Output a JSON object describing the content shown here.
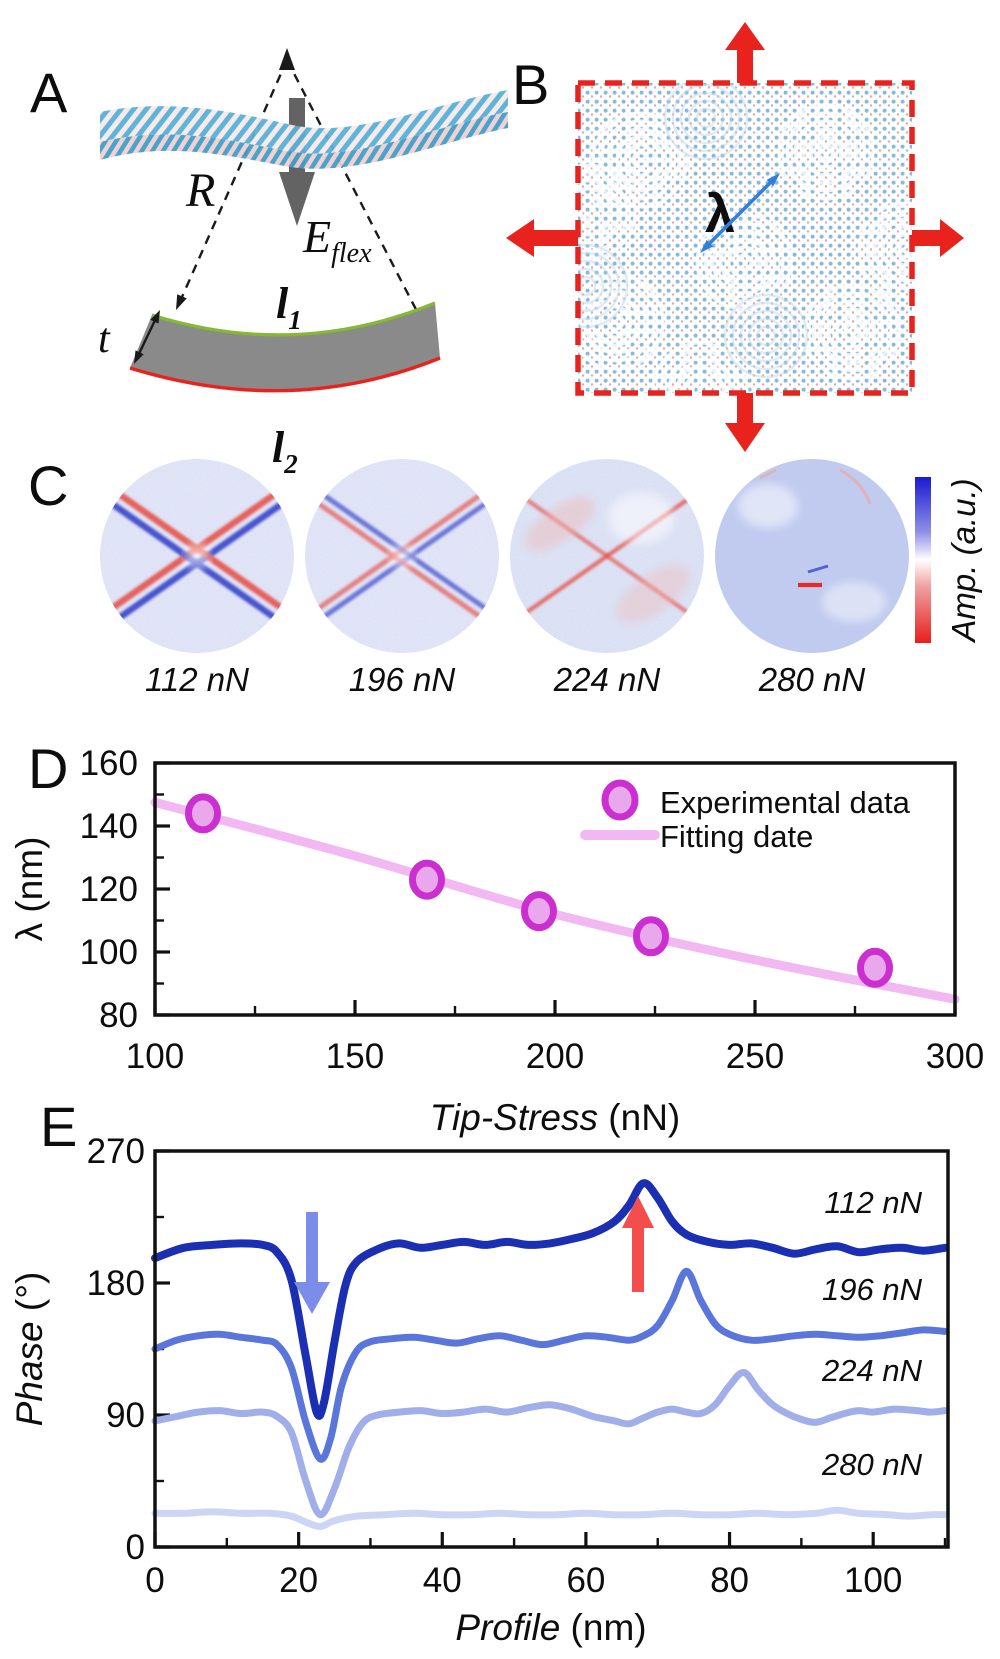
{
  "figure": {
    "panel_labels": {
      "a": "A",
      "b": "B",
      "c": "C",
      "d": "D",
      "e": "E"
    }
  },
  "panel_a": {
    "radius_label": "R",
    "energy_label": "E",
    "energy_sub": "flex",
    "thickness_label": "t",
    "arc_top_label": "l",
    "arc_top_sub": "1",
    "arc_bottom_label": "l",
    "arc_bottom_sub": "2"
  },
  "panel_b": {
    "wavelength_label": "λ"
  },
  "panel_c": {
    "force_labels": [
      "112 nN",
      "196 nN",
      "224 nN",
      "280 nN"
    ],
    "colorbar_label": "Amp. (a.u.)"
  },
  "panel_d": {
    "ylabel": "λ (nm)",
    "xlabel_main": "Tip-Stress",
    "xlabel_unit": " (nN)",
    "legend": [
      {
        "label": "Experimental data"
      },
      {
        "label": "Fitting date"
      }
    ],
    "x_ticks": [
      {
        "v": 100,
        "label": "100"
      },
      {
        "v": 150,
        "label": "150"
      },
      {
        "v": 200,
        "label": "200"
      },
      {
        "v": 250,
        "label": "250"
      },
      {
        "v": 300,
        "label": "300"
      }
    ],
    "y_ticks": [
      {
        "v": 80,
        "label": "80"
      },
      {
        "v": 100,
        "label": "100"
      },
      {
        "v": 120,
        "label": "120"
      },
      {
        "v": 140,
        "label": "140"
      },
      {
        "v": 160,
        "label": "160"
      }
    ],
    "x_minor": [
      125,
      175,
      225,
      275
    ],
    "y_minor": [
      90,
      110,
      130,
      150
    ]
  },
  "panel_e": {
    "ylabel_main": "Phase",
    "ylabel_unit": " (°)",
    "xlabel_main": "Profile",
    "xlabel_unit": " (nm)",
    "curve_labels": [
      "112 nN",
      "196 nN",
      "224 nN",
      "280 nN"
    ],
    "x_ticks": [
      {
        "v": 0,
        "label": "0"
      },
      {
        "v": 20,
        "label": "20"
      },
      {
        "v": 40,
        "label": "40"
      },
      {
        "v": 60,
        "label": "60"
      },
      {
        "v": 80,
        "label": "80"
      },
      {
        "v": 100,
        "label": "100"
      }
    ],
    "y_ticks": [
      {
        "v": 0,
        "label": "0"
      },
      {
        "v": 90,
        "label": "90"
      },
      {
        "v": 180,
        "label": "180"
      },
      {
        "v": 270,
        "label": "270"
      }
    ],
    "x_minor": [
      10,
      30,
      50,
      70,
      90,
      110
    ],
    "y_minor": [
      45,
      135,
      225
    ]
  },
  "colors": {
    "accent_red": "#e8231d",
    "blue_arrow_b": "#2f7fe0",
    "marker_ring": "#cb2fd0",
    "marker_fill": "#e9a8ec",
    "fit_line": "#f2b8f2",
    "curve_112": "#1b2fb2",
    "curve_196": "#5b76da",
    "curve_224": "#a0aeea",
    "curve_280": "#cdd5f5",
    "arrow_blue_e": "#7b8de8",
    "arrow_red_e": "#f34d4d",
    "slab_gray": "#8a8a8a",
    "edge_green": "#86b832",
    "text_green": "#17a258",
    "spoke_blue": "#2636c4",
    "spoke_red": "#e8443a",
    "colorbar_top": "#1a1ad0",
    "colorbar_bottom": "#e81e1e"
  },
  "chart_data": [
    {
      "type": "scatter",
      "title": "",
      "xlabel": "Tip-Stress (nN)",
      "ylabel": "λ (nm)",
      "xlim": [
        100,
        300
      ],
      "ylim": [
        80,
        160
      ],
      "grid": false,
      "legend_position": "upper right",
      "series": [
        {
          "name": "Experimental data",
          "type": "scatter",
          "x": [
            112,
            168,
            196,
            224,
            280
          ],
          "y": [
            144,
            123,
            113,
            105,
            95
          ]
        },
        {
          "name": "Fitting date",
          "type": "line",
          "x": [
            100,
            150,
            200,
            250,
            300
          ],
          "y": [
            147.5,
            130.5,
            112,
            97.5,
            85
          ]
        }
      ]
    },
    {
      "type": "line",
      "title": "",
      "xlabel": "Profile (nm)",
      "ylabel": "Phase (°)",
      "xlim": [
        0,
        110
      ],
      "ylim": [
        0,
        270
      ],
      "grid": false,
      "annotations": [
        "112 nN",
        "196 nN",
        "224 nN",
        "280 nN"
      ],
      "series": [
        {
          "name": "112 nN",
          "points": [
            [
              0,
              197
            ],
            [
              4,
              204
            ],
            [
              8,
              206
            ],
            [
              12,
              207
            ],
            [
              15,
              206
            ],
            [
              17,
              201
            ],
            [
              19,
              182
            ],
            [
              21,
              130
            ],
            [
              22.5,
              92
            ],
            [
              23.5,
              98
            ],
            [
              25,
              140
            ],
            [
              26.5,
              178
            ],
            [
              28,
              194
            ],
            [
              31,
              203
            ],
            [
              34,
              207
            ],
            [
              37,
              204
            ],
            [
              40,
              206
            ],
            [
              43,
              208
            ],
            [
              46,
              206
            ],
            [
              49,
              208
            ],
            [
              52,
              206
            ],
            [
              55,
              207
            ],
            [
              58,
              210
            ],
            [
              61,
              214
            ],
            [
              64,
              222
            ],
            [
              66,
              233
            ],
            [
              68,
              248
            ],
            [
              70,
              238
            ],
            [
              72,
              222
            ],
            [
              74,
              213
            ],
            [
              77,
              208
            ],
            [
              80,
              206
            ],
            [
              83,
              207
            ],
            [
              86,
              204
            ],
            [
              89,
              200
            ],
            [
              92,
              203
            ],
            [
              95,
              205
            ],
            [
              98,
              201
            ],
            [
              101,
              203
            ],
            [
              104,
              204
            ],
            [
              107,
              202
            ],
            [
              110,
              204
            ]
          ]
        },
        {
          "name": "196 nN",
          "points": [
            [
              0,
              135
            ],
            [
              3,
              141
            ],
            [
              6,
              144
            ],
            [
              9,
              145
            ],
            [
              12,
              143
            ],
            [
              15,
              141
            ],
            [
              17,
              138
            ],
            [
              19,
              122
            ],
            [
              21,
              85
            ],
            [
              23,
              60
            ],
            [
              24.5,
              75
            ],
            [
              26,
              110
            ],
            [
              28,
              133
            ],
            [
              30,
              140
            ],
            [
              33,
              142
            ],
            [
              36,
              143
            ],
            [
              39,
              141
            ],
            [
              42,
              139
            ],
            [
              45,
              142
            ],
            [
              48,
              144
            ],
            [
              51,
              141
            ],
            [
              54,
              138
            ],
            [
              57,
              141
            ],
            [
              60,
              144
            ],
            [
              63,
              143
            ],
            [
              66,
              141
            ],
            [
              68,
              144
            ],
            [
              70,
              151
            ],
            [
              72,
              168
            ],
            [
              74,
              188
            ],
            [
              76,
              168
            ],
            [
              78,
              152
            ],
            [
              80,
              145
            ],
            [
              83,
              141
            ],
            [
              86,
              142
            ],
            [
              89,
              144
            ],
            [
              92,
              145
            ],
            [
              95,
              144
            ],
            [
              98,
              143
            ],
            [
              101,
              144
            ],
            [
              104,
              146
            ],
            [
              107,
              148
            ],
            [
              110,
              147
            ]
          ]
        },
        {
          "name": "224 nN",
          "points": [
            [
              0,
              86
            ],
            [
              3,
              89
            ],
            [
              6,
              92
            ],
            [
              9,
              93
            ],
            [
              12,
              91
            ],
            [
              15,
              92
            ],
            [
              17,
              89
            ],
            [
              19,
              78
            ],
            [
              21,
              45
            ],
            [
              23,
              22
            ],
            [
              25,
              40
            ],
            [
              27,
              68
            ],
            [
              29,
              85
            ],
            [
              31,
              90
            ],
            [
              34,
              92
            ],
            [
              37,
              93
            ],
            [
              40,
              91
            ],
            [
              43,
              92
            ],
            [
              46,
              94
            ],
            [
              49,
              92
            ],
            [
              52,
              95
            ],
            [
              55,
              97
            ],
            [
              58,
              94
            ],
            [
              61,
              89
            ],
            [
              64,
              86
            ],
            [
              66,
              84
            ],
            [
              68,
              88
            ],
            [
              70,
              92
            ],
            [
              72,
              94
            ],
            [
              74,
              92
            ],
            [
              76,
              91
            ],
            [
              78,
              97
            ],
            [
              80,
              110
            ],
            [
              82,
              119
            ],
            [
              84,
              107
            ],
            [
              86,
              97
            ],
            [
              88,
              91
            ],
            [
              90,
              87
            ],
            [
              92,
              85
            ],
            [
              94,
              88
            ],
            [
              96,
              91
            ],
            [
              98,
              93
            ],
            [
              100,
              92
            ],
            [
              103,
              94
            ],
            [
              106,
              93
            ],
            [
              108,
              92
            ],
            [
              110,
              93
            ]
          ]
        },
        {
          "name": "280 nN",
          "points": [
            [
              0,
              23
            ],
            [
              4,
              23
            ],
            [
              8,
              24
            ],
            [
              12,
              23
            ],
            [
              16,
              23
            ],
            [
              19,
              21
            ],
            [
              21,
              17
            ],
            [
              23,
              14
            ],
            [
              25,
              18
            ],
            [
              28,
              21
            ],
            [
              32,
              22
            ],
            [
              36,
              23
            ],
            [
              40,
              22
            ],
            [
              44,
              22
            ],
            [
              48,
              23
            ],
            [
              52,
              22
            ],
            [
              56,
              22
            ],
            [
              60,
              23
            ],
            [
              64,
              22
            ],
            [
              68,
              22
            ],
            [
              72,
              23
            ],
            [
              76,
              22
            ],
            [
              80,
              22
            ],
            [
              84,
              23
            ],
            [
              88,
              22
            ],
            [
              92,
              23
            ],
            [
              95,
              25
            ],
            [
              98,
              23
            ],
            [
              102,
              22
            ],
            [
              105,
              21
            ],
            [
              108,
              22
            ],
            [
              110,
              22
            ]
          ]
        }
      ]
    }
  ]
}
